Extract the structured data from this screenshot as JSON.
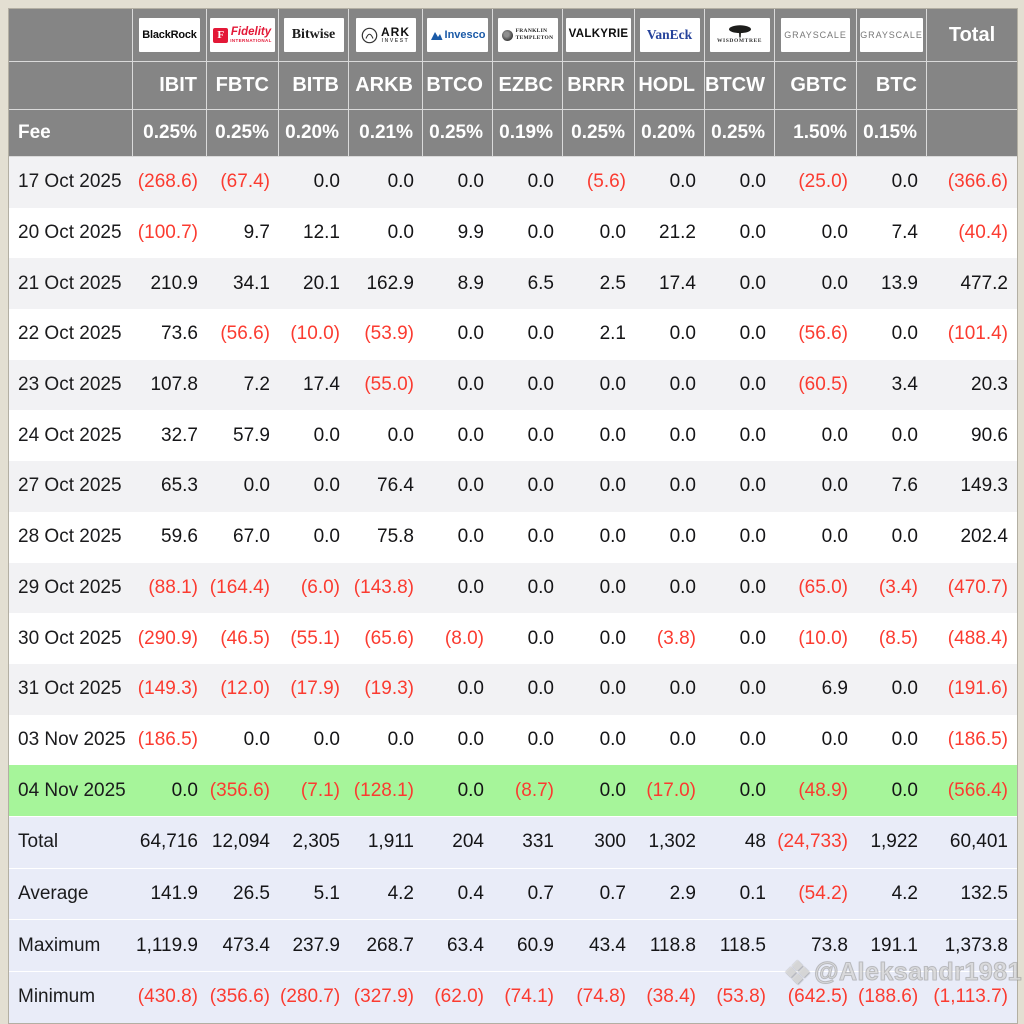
{
  "chart_data": {
    "type": "table",
    "description": "Bitcoin ETF daily flow table (values in USD millions, negatives in parentheses)",
    "providers": [
      {
        "id": "blackrock",
        "label": "BlackRock"
      },
      {
        "id": "fidelity",
        "label": "Fidelity",
        "sub": "INTERNATIONAL",
        "monogram": "F"
      },
      {
        "id": "bitwise",
        "label": "Bitwise"
      },
      {
        "id": "ark",
        "label": "ARK",
        "sub": "INVEST"
      },
      {
        "id": "invesco",
        "label": "Invesco"
      },
      {
        "id": "franklin",
        "label": "FRANKLIN",
        "sub": "TEMPLETON"
      },
      {
        "id": "valkyrie",
        "label": "VALKYRIE"
      },
      {
        "id": "vaneck",
        "label": "VanEck"
      },
      {
        "id": "wisdomtree",
        "label": "WISDOMTREE"
      },
      {
        "id": "grayscale",
        "label": "GRAYSCALE"
      },
      {
        "id": "grayscale2",
        "label": "GRAYSCALE"
      }
    ],
    "total_label": "Total",
    "tickers": [
      "IBIT",
      "FBTC",
      "BITB",
      "ARKB",
      "BTCO",
      "EZBC",
      "BRRR",
      "HODL",
      "BTCW",
      "GBTC",
      "BTC"
    ],
    "fee_row": {
      "label": "Fee",
      "values": [
        "0.25%",
        "0.25%",
        "0.20%",
        "0.21%",
        "0.25%",
        "0.19%",
        "0.25%",
        "0.20%",
        "0.25%",
        "1.50%",
        "0.15%"
      ]
    },
    "highlighted_date": "04 Nov 2025",
    "date_rows": [
      {
        "date": "17 Oct 2025",
        "values": [
          "(268.6)",
          "(67.4)",
          "0.0",
          "0.0",
          "0.0",
          "0.0",
          "(5.6)",
          "0.0",
          "0.0",
          "(25.0)",
          "0.0",
          "(366.6)"
        ]
      },
      {
        "date": "20 Oct 2025",
        "values": [
          "(100.7)",
          "9.7",
          "12.1",
          "0.0",
          "9.9",
          "0.0",
          "0.0",
          "21.2",
          "0.0",
          "0.0",
          "7.4",
          "(40.4)"
        ]
      },
      {
        "date": "21 Oct 2025",
        "values": [
          "210.9",
          "34.1",
          "20.1",
          "162.9",
          "8.9",
          "6.5",
          "2.5",
          "17.4",
          "0.0",
          "0.0",
          "13.9",
          "477.2"
        ]
      },
      {
        "date": "22 Oct 2025",
        "values": [
          "73.6",
          "(56.6)",
          "(10.0)",
          "(53.9)",
          "0.0",
          "0.0",
          "2.1",
          "0.0",
          "0.0",
          "(56.6)",
          "0.0",
          "(101.4)"
        ]
      },
      {
        "date": "23 Oct 2025",
        "values": [
          "107.8",
          "7.2",
          "17.4",
          "(55.0)",
          "0.0",
          "0.0",
          "0.0",
          "0.0",
          "0.0",
          "(60.5)",
          "3.4",
          "20.3"
        ]
      },
      {
        "date": "24 Oct 2025",
        "values": [
          "32.7",
          "57.9",
          "0.0",
          "0.0",
          "0.0",
          "0.0",
          "0.0",
          "0.0",
          "0.0",
          "0.0",
          "0.0",
          "90.6"
        ]
      },
      {
        "date": "27 Oct 2025",
        "values": [
          "65.3",
          "0.0",
          "0.0",
          "76.4",
          "0.0",
          "0.0",
          "0.0",
          "0.0",
          "0.0",
          "0.0",
          "7.6",
          "149.3"
        ]
      },
      {
        "date": "28 Oct 2025",
        "values": [
          "59.6",
          "67.0",
          "0.0",
          "75.8",
          "0.0",
          "0.0",
          "0.0",
          "0.0",
          "0.0",
          "0.0",
          "0.0",
          "202.4"
        ]
      },
      {
        "date": "29 Oct 2025",
        "values": [
          "(88.1)",
          "(164.4)",
          "(6.0)",
          "(143.8)",
          "0.0",
          "0.0",
          "0.0",
          "0.0",
          "0.0",
          "(65.0)",
          "(3.4)",
          "(470.7)"
        ]
      },
      {
        "date": "30 Oct 2025",
        "values": [
          "(290.9)",
          "(46.5)",
          "(55.1)",
          "(65.6)",
          "(8.0)",
          "0.0",
          "0.0",
          "(3.8)",
          "0.0",
          "(10.0)",
          "(8.5)",
          "(488.4)"
        ]
      },
      {
        "date": "31 Oct 2025",
        "values": [
          "(149.3)",
          "(12.0)",
          "(17.9)",
          "(19.3)",
          "0.0",
          "0.0",
          "0.0",
          "0.0",
          "0.0",
          "6.9",
          "0.0",
          "(191.6)"
        ]
      },
      {
        "date": "03 Nov 2025",
        "values": [
          "(186.5)",
          "0.0",
          "0.0",
          "0.0",
          "0.0",
          "0.0",
          "0.0",
          "0.0",
          "0.0",
          "0.0",
          "0.0",
          "(186.5)"
        ]
      },
      {
        "date": "04 Nov 2025",
        "values": [
          "0.0",
          "(356.6)",
          "(7.1)",
          "(128.1)",
          "0.0",
          "(8.7)",
          "0.0",
          "(17.0)",
          "0.0",
          "(48.9)",
          "0.0",
          "(566.4)"
        ]
      }
    ],
    "summary_rows": [
      {
        "label": "Total",
        "values": [
          "64,716",
          "12,094",
          "2,305",
          "1,911",
          "204",
          "331",
          "300",
          "1,302",
          "48",
          "(24,733)",
          "1,922",
          "60,401"
        ]
      },
      {
        "label": "Average",
        "values": [
          "141.9",
          "26.5",
          "5.1",
          "4.2",
          "0.4",
          "0.7",
          "0.7",
          "2.9",
          "0.1",
          "(54.2)",
          "4.2",
          "132.5"
        ]
      },
      {
        "label": "Maximum",
        "values": [
          "1,119.9",
          "473.4",
          "237.9",
          "268.7",
          "63.4",
          "60.9",
          "43.4",
          "118.8",
          "118.5",
          "73.8",
          "191.1",
          "1,373.8"
        ]
      },
      {
        "label": "Minimum",
        "values": [
          "(430.8)",
          "(356.6)",
          "(280.7)",
          "(327.9)",
          "(62.0)",
          "(74.1)",
          "(74.8)",
          "(38.4)",
          "(53.8)",
          "(642.5)",
          "(188.6)",
          "(1,113.7)"
        ]
      }
    ]
  },
  "watermark": {
    "text": "@Aleksandr1981",
    "icon": "gem-icon"
  },
  "colors": {
    "header_bg": "#858585",
    "negative_red": "#fb3b30",
    "value_text": "#151517",
    "row_stripe": "#f2f2f4",
    "highlight_green": "#a6f59a",
    "summary_bg": "#e9ecf8",
    "page_frame": "#e3dfd2",
    "logo_box_bg": "#ffffff",
    "fidelity_red": "#e31837",
    "invesco_blue": "#1b5aa7",
    "vaneck_blue": "#26439b"
  }
}
